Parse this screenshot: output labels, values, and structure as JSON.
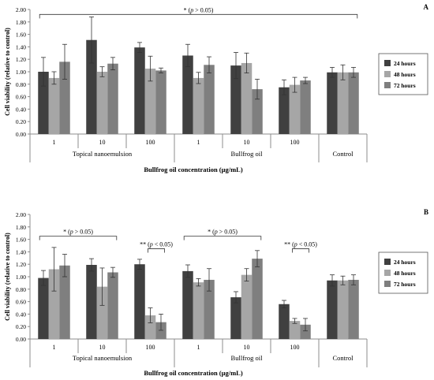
{
  "colors": {
    "h24": "#404040",
    "h48": "#a6a6a6",
    "h72": "#7f7f7f",
    "axis": "#8c8c8c",
    "text": "#000000"
  },
  "chart_data": [
    {
      "type": "bar",
      "panel_label": "A",
      "ylabel": "Cell viability (relative to control)",
      "xlabel": "Bullfrog oil concentration (μg/mL)",
      "ylim": [
        0,
        2.0
      ],
      "y_ticks": [
        "0.00",
        "0.20",
        "0.40",
        "0.60",
        "0.80",
        "1.00",
        "1.20",
        "1.40",
        "1.60",
        "1.80",
        "2.00"
      ],
      "categories": [
        "1",
        "10",
        "100",
        "1",
        "10",
        "100",
        ""
      ],
      "groups": [
        {
          "label": "Topical nanoemulsion",
          "start": 0,
          "end": 2
        },
        {
          "label": "Bullfrog oil",
          "start": 3,
          "end": 5
        },
        {
          "label": "Control",
          "start": 6,
          "end": 6
        }
      ],
      "series": [
        {
          "name": "24 hours",
          "values": [
            1.0,
            1.51,
            1.39,
            1.26,
            1.1,
            0.75,
            0.99
          ],
          "errors": [
            0.23,
            0.37,
            0.08,
            0.18,
            0.21,
            0.12,
            0.08
          ]
        },
        {
          "name": "48 hours",
          "values": [
            0.9,
            1.0,
            1.05,
            0.9,
            1.14,
            0.79,
            0.99
          ],
          "errors": [
            0.1,
            0.08,
            0.2,
            0.09,
            0.16,
            0.12,
            0.12
          ]
        },
        {
          "name": "72 hours",
          "values": [
            1.16,
            1.13,
            1.02,
            1.11,
            0.72,
            0.86,
            0.99
          ],
          "errors": [
            0.28,
            0.1,
            0.04,
            0.13,
            0.16,
            0.05,
            0.08
          ]
        }
      ],
      "annotations": [
        {
          "text": "* (p > 0.05)",
          "from": 0,
          "to": 6,
          "y": 1.92
        }
      ],
      "legend": "right"
    },
    {
      "type": "bar",
      "panel_label": "B",
      "ylabel": "Cell viability (relative to control)",
      "xlabel": "Bullfrog oil concentration (μg/mL)",
      "ylim": [
        0,
        2.0
      ],
      "y_ticks": [
        "0.00",
        "0.20",
        "0.40",
        "0.60",
        "0.80",
        "1.00",
        "1.20",
        "1.40",
        "1.60",
        "1.80",
        "2.00"
      ],
      "categories": [
        "1",
        "10",
        "100",
        "1",
        "10",
        "100",
        ""
      ],
      "groups": [
        {
          "label": "Topical nanoemulsion",
          "start": 0,
          "end": 2
        },
        {
          "label": "Bullfrog oil",
          "start": 3,
          "end": 5
        },
        {
          "label": "Control",
          "start": 6,
          "end": 6
        }
      ],
      "series": [
        {
          "name": "24 hours",
          "values": [
            0.98,
            1.19,
            1.2,
            1.09,
            0.67,
            0.56,
            0.94
          ],
          "errors": [
            0.12,
            0.1,
            0.08,
            0.1,
            0.09,
            0.06,
            0.09
          ]
        },
        {
          "name": "48 hours",
          "values": [
            1.12,
            0.84,
            0.38,
            0.91,
            1.03,
            0.29,
            0.94
          ],
          "errors": [
            0.35,
            0.3,
            0.12,
            0.06,
            0.1,
            0.04,
            0.07
          ]
        },
        {
          "name": "72 hours",
          "values": [
            1.18,
            1.07,
            0.27,
            0.95,
            1.29,
            0.23,
            0.95
          ],
          "errors": [
            0.18,
            0.08,
            0.13,
            0.18,
            0.13,
            0.1,
            0.08
          ]
        }
      ],
      "annotations": [
        {
          "text": "* (p > 0.05)",
          "from": 0,
          "to": 1,
          "y": 1.65
        },
        {
          "text": "** (p < 0.05)",
          "from": 2,
          "to": 2,
          "y": 1.45,
          "narrow": true
        },
        {
          "text": "* (p > 0.05)",
          "from": 3,
          "to": 4,
          "y": 1.65
        },
        {
          "text": "** (p < 0.05)",
          "from": 5,
          "to": 5,
          "y": 1.45,
          "narrow": true
        }
      ],
      "legend": "right"
    }
  ]
}
